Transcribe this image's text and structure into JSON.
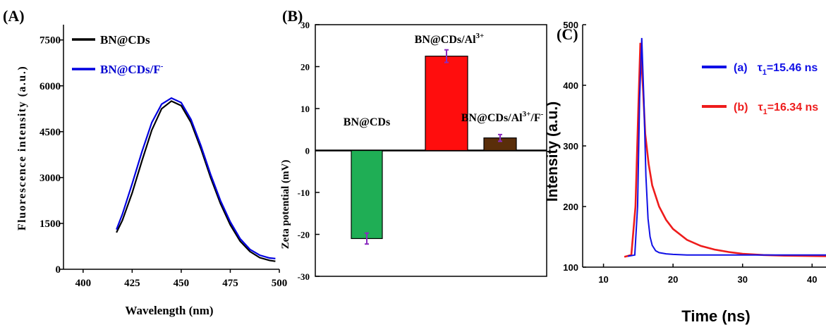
{
  "chart_data": [
    {
      "panel_label": "(A)",
      "type": "line",
      "xlabel": "Wavelength (nm)",
      "ylabel": "Fluorescence intensity (a.u.)",
      "xlim": [
        390,
        500
      ],
      "ylim": [
        0,
        8000
      ],
      "xticks": [
        "400",
        "425",
        "450",
        "475",
        "500"
      ],
      "yticks": [
        "0",
        "1500",
        "3000",
        "4500",
        "6000",
        "7500"
      ],
      "legend_position": "top-left",
      "series": [
        {
          "name": "BN@CDs",
          "color": "#000000",
          "x": [
            417,
            420,
            425,
            430,
            435,
            440,
            445,
            450,
            455,
            460,
            465,
            470,
            475,
            480,
            485,
            490,
            495,
            498
          ],
          "y": [
            1200,
            1600,
            2500,
            3550,
            4550,
            5250,
            5500,
            5350,
            4800,
            3950,
            3000,
            2150,
            1450,
            920,
            580,
            380,
            290,
            260
          ]
        },
        {
          "name": "BN@CDs/F",
          "name_superscript": "-",
          "color": "#0000e0",
          "x": [
            417,
            420,
            425,
            430,
            435,
            440,
            445,
            450,
            455,
            460,
            465,
            470,
            475,
            480,
            485,
            490,
            495,
            498
          ],
          "y": [
            1300,
            1800,
            2800,
            3850,
            4800,
            5400,
            5600,
            5450,
            4900,
            4050,
            3100,
            2250,
            1550,
            1000,
            650,
            460,
            370,
            350
          ]
        }
      ]
    },
    {
      "panel_label": "(B)",
      "type": "bar",
      "ylabel": "Zeta potential (mV)",
      "ylim": [
        -30,
        30
      ],
      "yticks": [
        "-30",
        "-20",
        "-10",
        "0",
        "10",
        "20",
        "30"
      ],
      "categories": [
        "BN@CDs",
        "BN@CDs/Al",
        "BN@CDs/Al/F"
      ],
      "category_labels": [
        {
          "base": "BN@CDs",
          "sup": ""
        },
        {
          "base": "BN@CDs/Al",
          "sup": "3+"
        },
        {
          "base": "BN@CDs/Al",
          "sup": "3+",
          "tail": "/F",
          "tail_sup": "-"
        }
      ],
      "values": [
        -21,
        22.5,
        3
      ],
      "errors": [
        1.3,
        1.5,
        0.8
      ],
      "colors": [
        "#1fae55",
        "#ff0d0d",
        "#5a2e0a"
      ]
    },
    {
      "panel_label": "(C)",
      "type": "line",
      "xlabel": "Time (ns)",
      "ylabel": "Intensity (a.u.)",
      "xlim": [
        7,
        42
      ],
      "ylim": [
        100,
        500
      ],
      "xticks": [
        "10",
        "20",
        "30",
        "40"
      ],
      "yticks": [
        "100",
        "200",
        "300",
        "400",
        "500"
      ],
      "legend_position": "top-right",
      "series": [
        {
          "name": "(a)",
          "tau_label": "τ",
          "tau_sub": "1",
          "tau_value": "=15.46 ns",
          "color": "#1010e6",
          "x": [
            13.5,
            14.5,
            14.9,
            15.2,
            15.5,
            15.8,
            16.1,
            16.4,
            16.7,
            17,
            17.5,
            18,
            19,
            20,
            22,
            25,
            30,
            35,
            42
          ],
          "y": [
            118,
            120,
            200,
            380,
            478,
            380,
            250,
            180,
            150,
            136,
            127,
            124,
            122,
            121,
            120,
            120,
            120,
            120,
            120
          ]
        },
        {
          "name": "(b)",
          "tau_label": "τ",
          "tau_sub": "1",
          "tau_value": "=16.34 ns",
          "color": "#ee1c1c",
          "x": [
            13,
            14,
            14.6,
            15,
            15.3,
            15.7,
            16,
            16.5,
            17,
            18,
            19,
            20,
            22,
            24,
            26,
            28,
            30,
            33,
            36,
            42
          ],
          "y": [
            117,
            120,
            200,
            360,
            470,
            390,
            320,
            270,
            235,
            200,
            178,
            163,
            145,
            135,
            129,
            125,
            122,
            120,
            119,
            118
          ]
        }
      ]
    }
  ]
}
